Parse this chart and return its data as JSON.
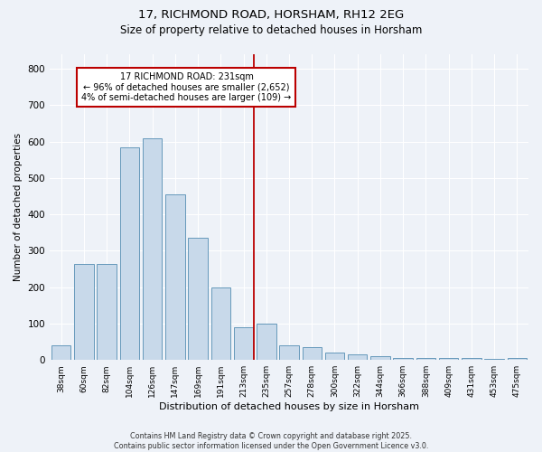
{
  "title1": "17, RICHMOND ROAD, HORSHAM, RH12 2EG",
  "title2": "Size of property relative to detached houses in Horsham",
  "xlabel": "Distribution of detached houses by size in Horsham",
  "ylabel": "Number of detached properties",
  "categories": [
    "38sqm",
    "60sqm",
    "82sqm",
    "104sqm",
    "126sqm",
    "147sqm",
    "169sqm",
    "191sqm",
    "213sqm",
    "235sqm",
    "257sqm",
    "278sqm",
    "300sqm",
    "322sqm",
    "344sqm",
    "366sqm",
    "388sqm",
    "409sqm",
    "431sqm",
    "453sqm",
    "475sqm"
  ],
  "bar_heights": [
    40,
    265,
    265,
    585,
    610,
    455,
    335,
    200,
    90,
    100,
    40,
    35,
    20,
    15,
    10,
    5,
    5,
    5,
    5,
    2,
    5
  ],
  "bar_color": "#c8d9ea",
  "bar_edge_color": "#6699bb",
  "vline_color": "#bb0000",
  "annotation_text": "17 RICHMOND ROAD: 231sqm\n← 96% of detached houses are smaller (2,652)\n4% of semi-detached houses are larger (109) →",
  "annotation_box_color": "#ffffff",
  "annotation_box_edge": "#bb0000",
  "background_color": "#eef2f8",
  "grid_color": "#ffffff",
  "footer_text": "Contains HM Land Registry data © Crown copyright and database right 2025.\nContains public sector information licensed under the Open Government Licence v3.0.",
  "ylim": [
    0,
    840
  ],
  "yticks": [
    0,
    100,
    200,
    300,
    400,
    500,
    600,
    700,
    800
  ],
  "vline_pos": 8.45
}
